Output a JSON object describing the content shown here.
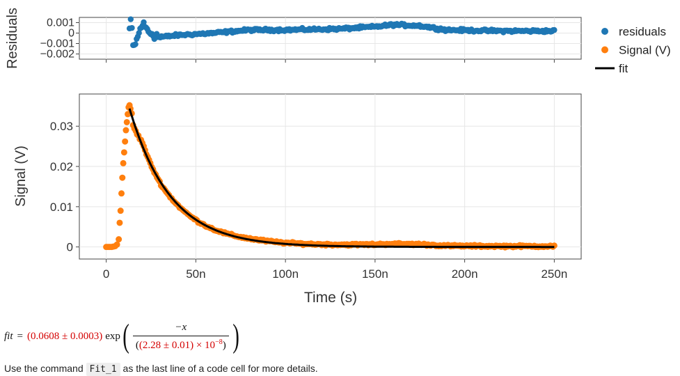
{
  "chart_data": [
    {
      "type": "scatter",
      "panel": "residuals",
      "ylabel": "Residuals",
      "xlabel": "",
      "ylim": [
        -0.0025,
        0.0015
      ],
      "xlim": [
        -1.5e-08,
        2.65e-07
      ],
      "yticks": [
        {
          "value": 0.001,
          "label": "0.001"
        },
        {
          "value": 0,
          "label": "0"
        },
        {
          "value": -0.001,
          "label": "−0.001"
        },
        {
          "value": -0.002,
          "label": "−0.002"
        }
      ],
      "grid": true,
      "series": [
        {
          "name": "residuals",
          "color": "#1f77b4",
          "x_start": 1.3e-08,
          "x_end": 2.5e-07,
          "n_points": 360,
          "profile": [
            [
              1.3e-08,
              0.0004
            ],
            [
              1.4e-08,
              0.0012
            ],
            [
              1.5e-08,
              -0.0014
            ],
            [
              1.7e-08,
              -0.0007
            ],
            [
              2e-08,
              0.0009
            ],
            [
              2.4e-08,
              0.0001
            ],
            [
              3e-08,
              -0.0004
            ],
            [
              4e-08,
              -0.0002
            ],
            [
              6e-08,
              0.0
            ],
            [
              8e-08,
              0.0003
            ],
            [
              1e-07,
              0.0003
            ],
            [
              1.3e-07,
              0.0004
            ],
            [
              1.5e-07,
              0.0006
            ],
            [
              1.6e-07,
              0.0008
            ],
            [
              1.75e-07,
              0.0007
            ],
            [
              1.9e-07,
              0.0003
            ],
            [
              2.2e-07,
              0.0002
            ],
            [
              2.5e-07,
              0.0002
            ]
          ]
        }
      ]
    },
    {
      "type": "scatter",
      "panel": "signal",
      "xlabel": "Time (s)",
      "ylabel": "Signal (V)",
      "xlim": [
        -1.5e-08,
        2.65e-07
      ],
      "ylim": [
        -0.003,
        0.038
      ],
      "xticks": [
        {
          "value": 0,
          "label": "0"
        },
        {
          "value": 5e-08,
          "label": "50n"
        },
        {
          "value": 1e-07,
          "label": "100n"
        },
        {
          "value": 1.5e-07,
          "label": "150n"
        },
        {
          "value": 2e-07,
          "label": "200n"
        },
        {
          "value": 2.5e-07,
          "label": "250n"
        }
      ],
      "yticks": [
        {
          "value": 0,
          "label": "0"
        },
        {
          "value": 0.01,
          "label": "0.01"
        },
        {
          "value": 0.02,
          "label": "0.02"
        },
        {
          "value": 0.03,
          "label": "0.03"
        }
      ],
      "grid": true,
      "series": [
        {
          "name": "Signal (V)",
          "color": "#ff7f0e",
          "rise_points": [
            [
              0.0,
              0.0
            ],
            [
              1e-09,
              0.0
            ],
            [
              2e-09,
              0.0
            ],
            [
              3e-09,
              0.0
            ],
            [
              4e-09,
              0.0001
            ],
            [
              5e-09,
              0.0002
            ],
            [
              6e-09,
              0.0006
            ],
            [
              7e-09,
              0.0019
            ],
            [
              7.5e-09,
              0.006
            ],
            [
              8e-09,
              0.009
            ],
            [
              8.5e-09,
              0.0133
            ],
            [
              9e-09,
              0.0172
            ],
            [
              9.5e-09,
              0.0208
            ],
            [
              1e-08,
              0.0235
            ],
            [
              1.05e-08,
              0.0262
            ],
            [
              1.1e-08,
              0.029
            ],
            [
              1.15e-08,
              0.031
            ],
            [
              1.2e-08,
              0.033
            ],
            [
              1.25e-08,
              0.0347
            ],
            [
              1.3e-08,
              0.0352
            ]
          ],
          "decay": {
            "amplitude": 0.0608,
            "tau": 2.28e-08,
            "x_start": 1.35e-08,
            "x_end": 2.5e-07,
            "n_points": 320
          }
        },
        {
          "name": "fit",
          "color": "#000000",
          "line": true,
          "amplitude": 0.0608,
          "tau": 2.28e-08,
          "x_start": 1.3e-08,
          "x_end": 2.5e-07
        }
      ]
    }
  ],
  "legend": [
    {
      "label": "residuals",
      "color": "#1f77b4",
      "marker": "dot"
    },
    {
      "label": "Signal (V)",
      "color": "#ff7f0e",
      "marker": "dot"
    },
    {
      "label": "fit",
      "color": "#000000",
      "marker": "line"
    }
  ],
  "formula": {
    "lhs": "fit",
    "equals": "=",
    "amplitude": "(0.0608 ± 0.0003)",
    "func": "exp",
    "numerator": "−x",
    "tau": "(2.28 ± 0.01) × 10",
    "tau_exp": "−8"
  },
  "footnote": {
    "before": "Use the command",
    "command": "Fit_1",
    "after": "as the last line of a code cell for more details."
  }
}
